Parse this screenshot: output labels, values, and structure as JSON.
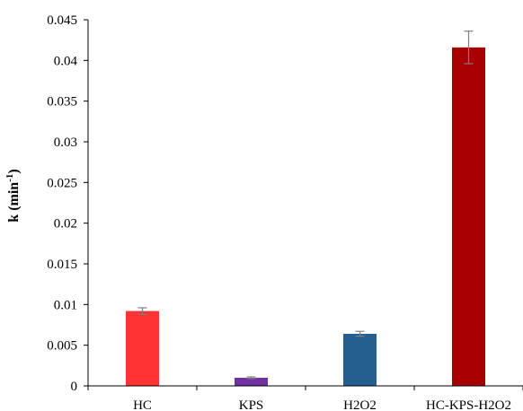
{
  "chart_data": {
    "type": "bar",
    "title": "",
    "xlabel": "",
    "ylabel": "k (min",
    "ylabel_sup": "-1",
    "ylabel_close": ")",
    "categories": [
      "HC",
      "KPS",
      "H2O2",
      "HC-KPS-H2O2"
    ],
    "values": [
      0.0092,
      0.001,
      0.0064,
      0.0416
    ],
    "errors": [
      0.0004,
      0.0001,
      0.0003,
      0.002
    ],
    "colors": [
      "#ff3333",
      "#7030a0",
      "#255e91",
      "#a80000"
    ],
    "ylim": [
      0,
      0.045
    ],
    "yticks": [
      "0",
      "0.005",
      "0.01",
      "0.015",
      "0.02",
      "0.025",
      "0.03",
      "0.035",
      "0.04",
      "0.045"
    ],
    "grid": false,
    "legend": "none"
  }
}
